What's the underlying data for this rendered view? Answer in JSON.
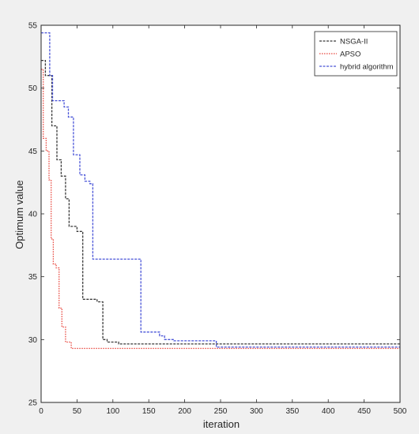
{
  "chart_data": {
    "type": "line",
    "title": "",
    "xlabel": "iteration",
    "ylabel": "Optimum value",
    "xlim": [
      0,
      500
    ],
    "ylim": [
      25,
      55
    ],
    "xticks": [
      0,
      50,
      100,
      150,
      200,
      250,
      300,
      350,
      400,
      450,
      500
    ],
    "yticks": [
      25,
      30,
      35,
      40,
      45,
      50,
      55
    ],
    "grid": false,
    "legend_position": "top-right",
    "series": [
      {
        "name": "NSGA-II",
        "color": "#3a3a3a",
        "line_style": "dashed",
        "step": true,
        "points": [
          [
            0,
            52.2
          ],
          [
            6,
            52.2
          ],
          [
            6,
            51.0
          ],
          [
            15,
            51.0
          ],
          [
            15,
            47.0
          ],
          [
            22,
            47.0
          ],
          [
            22,
            44.3
          ],
          [
            28,
            44.3
          ],
          [
            28,
            43.0
          ],
          [
            34,
            43.0
          ],
          [
            34,
            41.2
          ],
          [
            39,
            41.2
          ],
          [
            39,
            39.0
          ],
          [
            50,
            39.0
          ],
          [
            50,
            38.6
          ],
          [
            58,
            38.6
          ],
          [
            58,
            33.2
          ],
          [
            78,
            33.2
          ],
          [
            78,
            33.0
          ],
          [
            86,
            33.0
          ],
          [
            86,
            30.0
          ],
          [
            92,
            30.0
          ],
          [
            92,
            29.8
          ],
          [
            108,
            29.8
          ],
          [
            108,
            29.65
          ],
          [
            500,
            29.65
          ]
        ]
      },
      {
        "name": "APSO",
        "color": "#e8453c",
        "line_style": "dotted",
        "step": true,
        "points": [
          [
            0,
            51.5
          ],
          [
            3,
            51.5
          ],
          [
            3,
            46.0
          ],
          [
            7,
            46.0
          ],
          [
            7,
            45.0
          ],
          [
            11,
            45.0
          ],
          [
            11,
            42.7
          ],
          [
            14,
            42.7
          ],
          [
            14,
            38.0
          ],
          [
            17,
            38.0
          ],
          [
            17,
            36.0
          ],
          [
            21,
            36.0
          ],
          [
            21,
            35.7
          ],
          [
            25,
            35.7
          ],
          [
            25,
            32.5
          ],
          [
            29,
            32.5
          ],
          [
            29,
            31.0
          ],
          [
            34,
            31.0
          ],
          [
            34,
            29.8
          ],
          [
            42,
            29.8
          ],
          [
            42,
            29.3
          ],
          [
            500,
            29.3
          ]
        ]
      },
      {
        "name": "hybrid algorithm",
        "color": "#4a55d8",
        "line_style": "dashed",
        "step": true,
        "points": [
          [
            0,
            54.4
          ],
          [
            12,
            54.4
          ],
          [
            12,
            51.0
          ],
          [
            16,
            51.0
          ],
          [
            16,
            49.0
          ],
          [
            32,
            49.0
          ],
          [
            32,
            48.5
          ],
          [
            38,
            48.5
          ],
          [
            38,
            47.7
          ],
          [
            45,
            47.7
          ],
          [
            45,
            44.7
          ],
          [
            54,
            44.7
          ],
          [
            54,
            43.1
          ],
          [
            61,
            43.1
          ],
          [
            61,
            42.6
          ],
          [
            68,
            42.6
          ],
          [
            68,
            42.4
          ],
          [
            72,
            42.4
          ],
          [
            72,
            36.4
          ],
          [
            139,
            36.4
          ],
          [
            139,
            30.6
          ],
          [
            165,
            30.6
          ],
          [
            165,
            30.3
          ],
          [
            172,
            30.3
          ],
          [
            172,
            30.0
          ],
          [
            185,
            30.0
          ],
          [
            185,
            29.9
          ],
          [
            244,
            29.9
          ],
          [
            244,
            29.4
          ],
          [
            500,
            29.4
          ]
        ]
      }
    ]
  }
}
